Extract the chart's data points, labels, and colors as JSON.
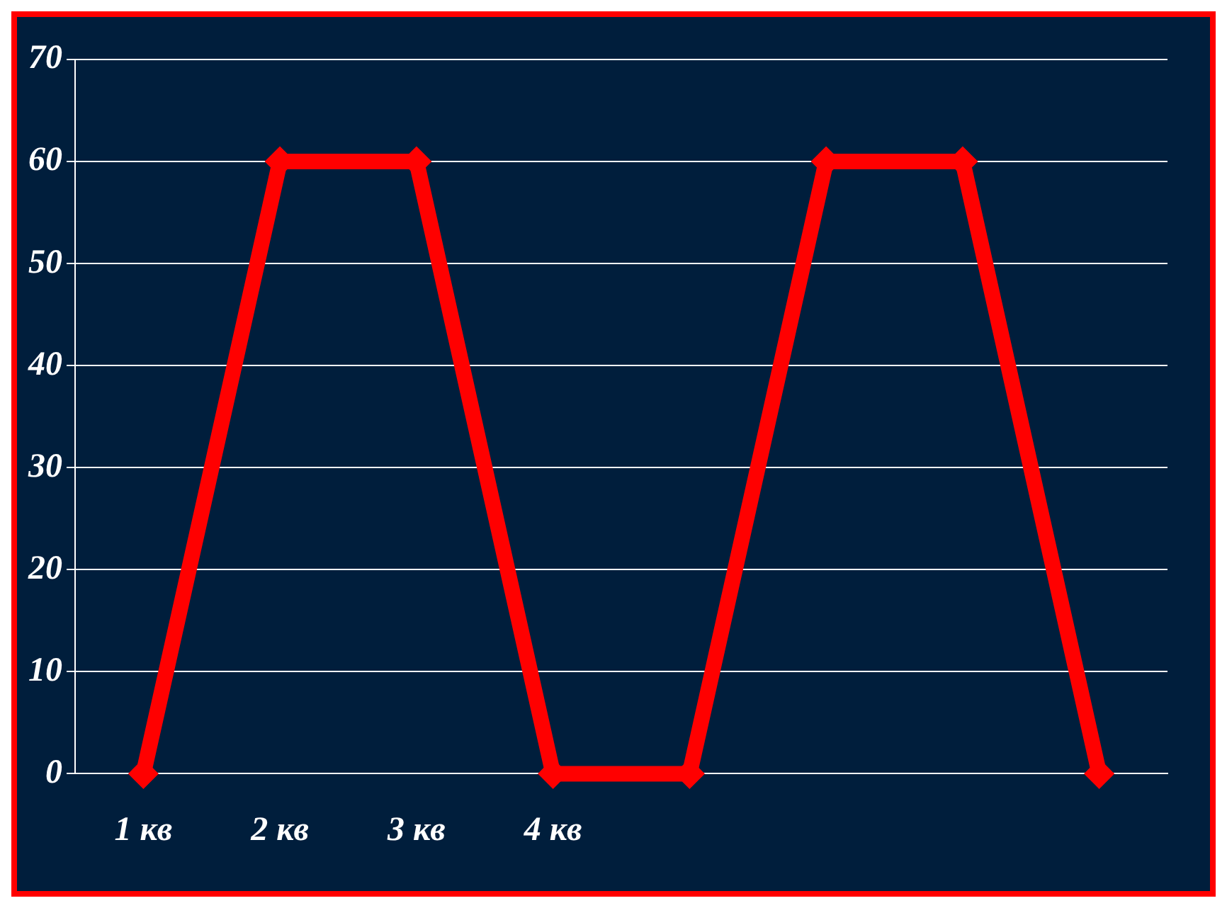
{
  "chart_data": {
    "type": "line",
    "categories": [
      "1 кв",
      "2 кв",
      "3 кв",
      "4 кв",
      null,
      null,
      null,
      null
    ],
    "series": [
      {
        "color": "#ff0000",
        "values": [
          0,
          60,
          60,
          0,
          0,
          60,
          60,
          0
        ]
      }
    ],
    "ylim": [
      0,
      70
    ],
    "yticks": [
      0,
      10,
      20,
      30,
      40,
      50,
      60,
      70
    ],
    "grid": "y",
    "legend": false,
    "marker": "diamond",
    "line_style": "solid"
  }
}
